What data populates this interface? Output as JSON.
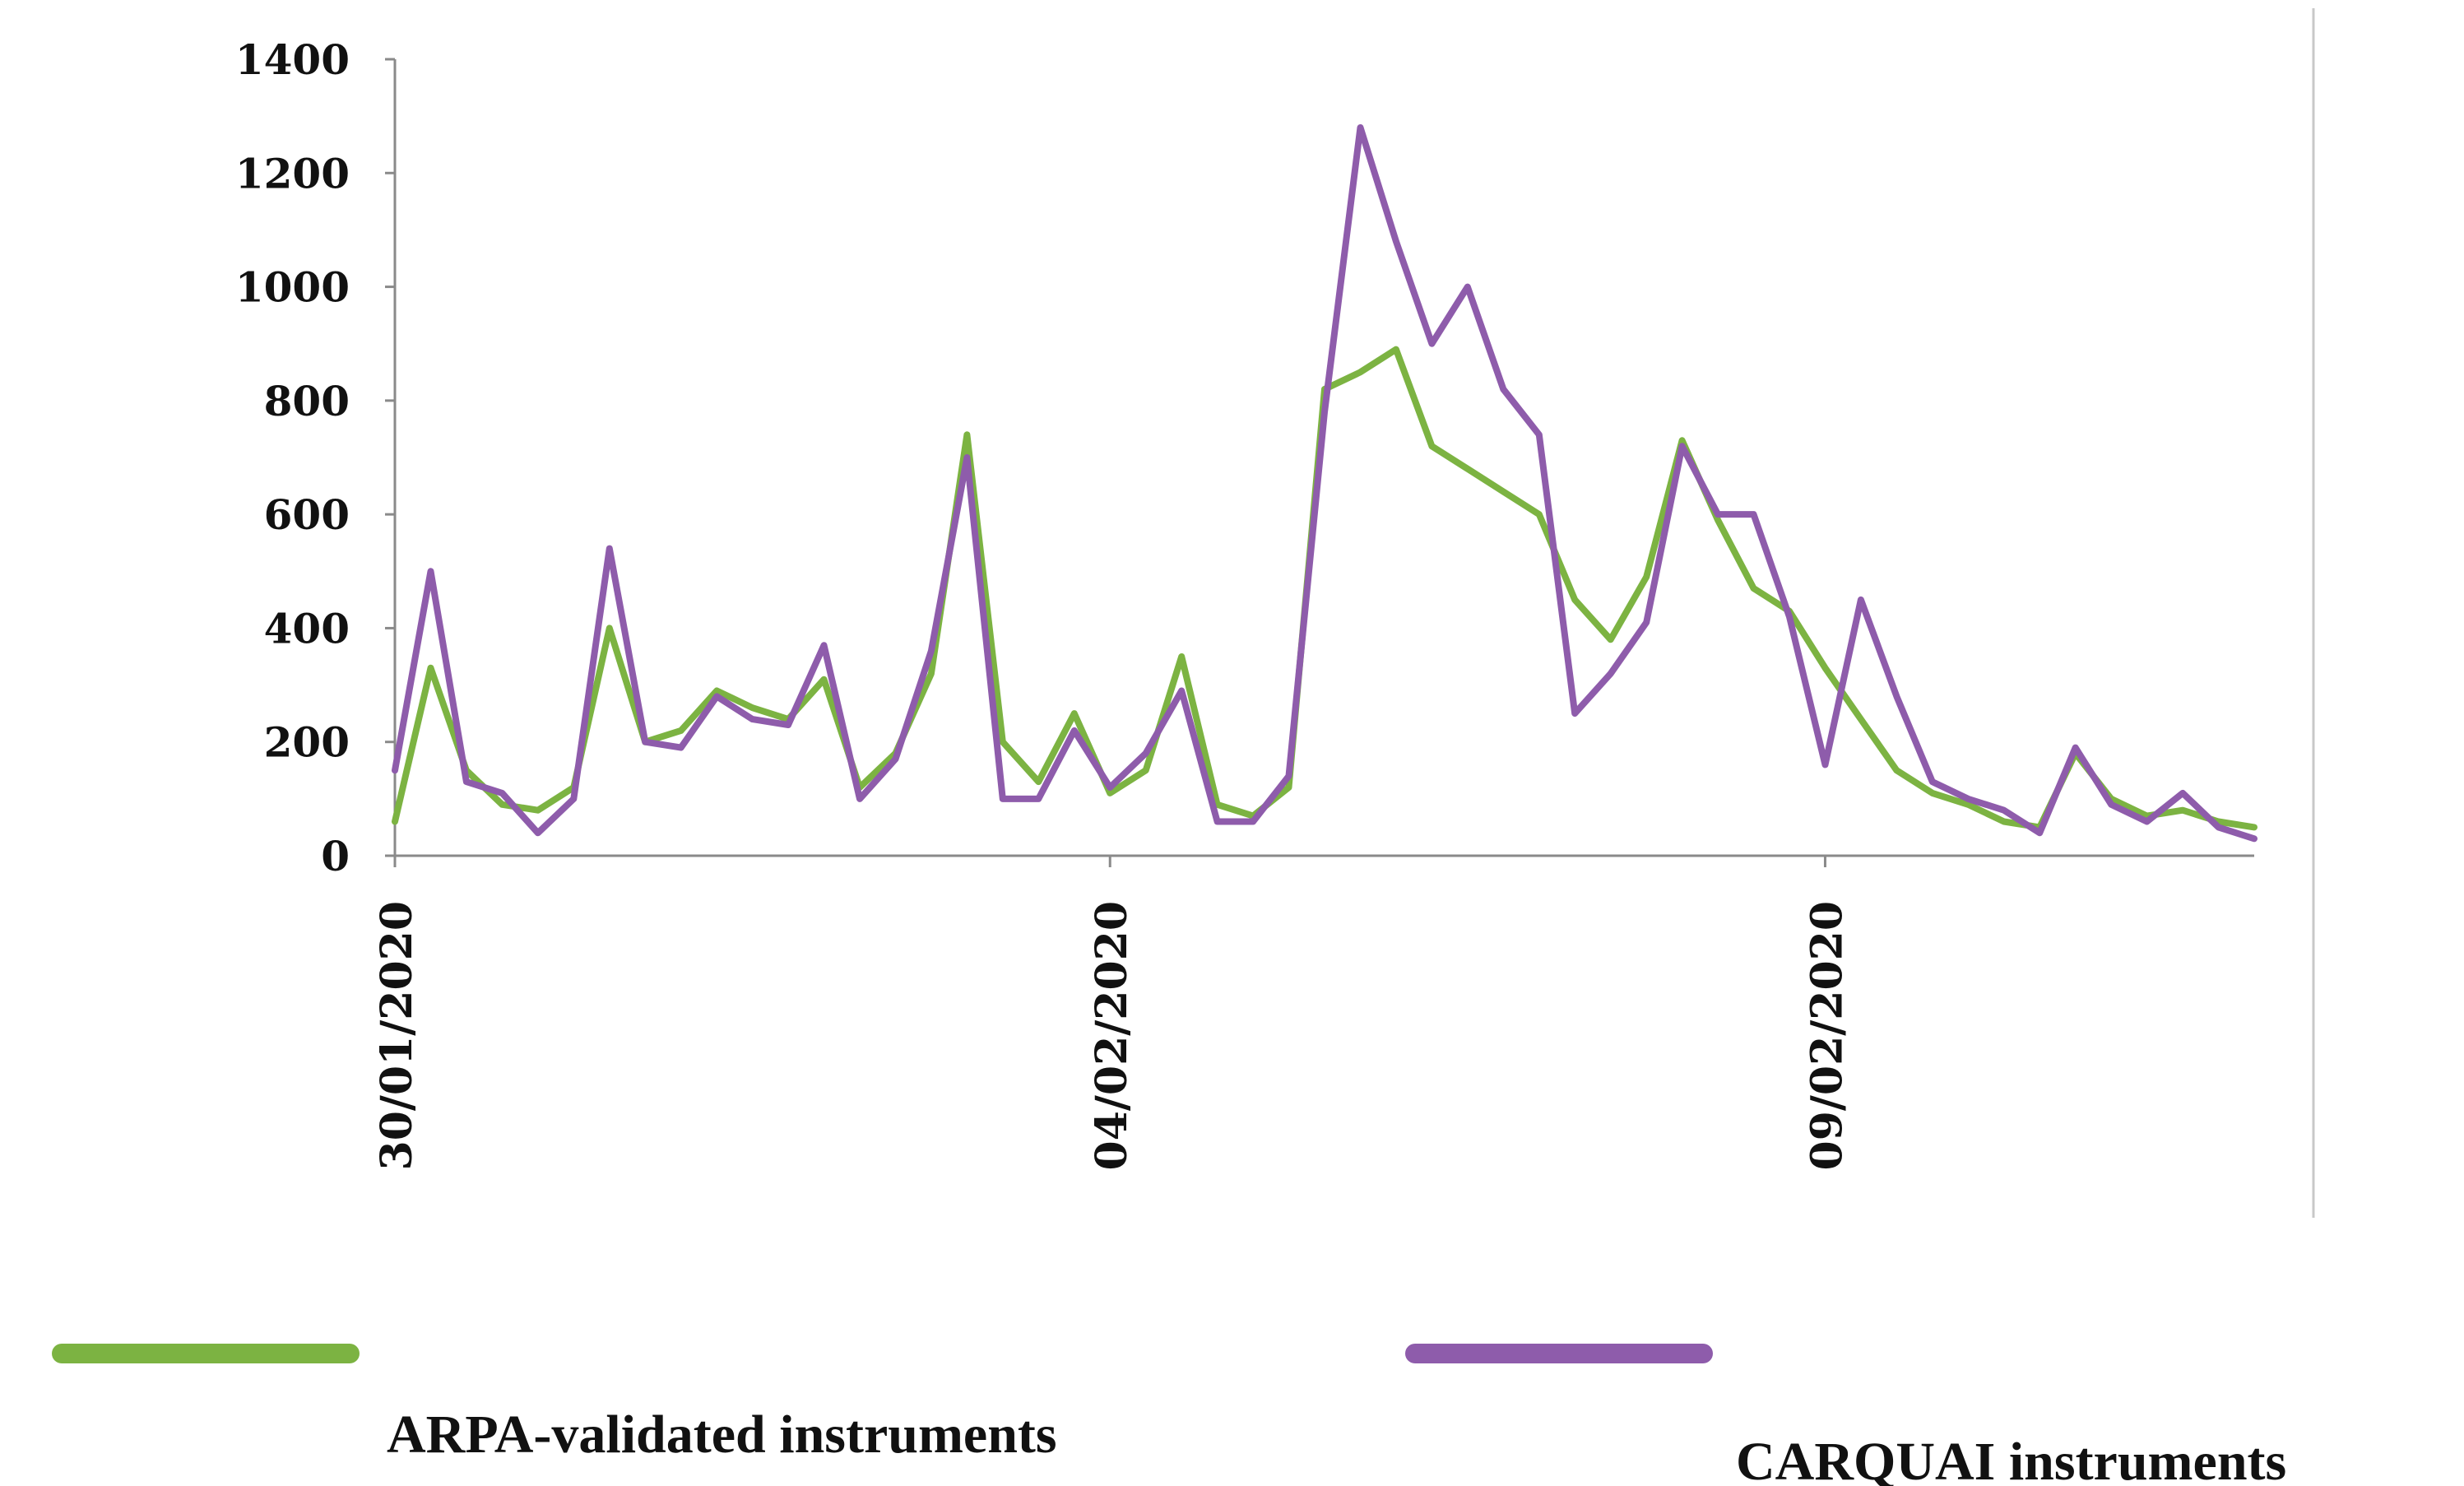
{
  "chart_data": {
    "type": "line",
    "title": "",
    "xlabel": "",
    "ylabel": "",
    "ylim": [
      0,
      1400
    ],
    "yticks": [
      0,
      200,
      400,
      600,
      800,
      1000,
      1200,
      1400
    ],
    "xlim": [
      "30/01/2020 00:00",
      "12/02/2020 00:00"
    ],
    "xticks": [
      "30/01/2020",
      "04/02/2020",
      "09/02/2020"
    ],
    "grid": false,
    "legend_position": "bottom",
    "x": [
      "30/01/2020 00:00",
      "30/01/2020 06:00",
      "30/01/2020 12:00",
      "30/01/2020 18:00",
      "31/01/2020 00:00",
      "31/01/2020 06:00",
      "31/01/2020 12:00",
      "31/01/2020 18:00",
      "01/02/2020 00:00",
      "01/02/2020 06:00",
      "01/02/2020 12:00",
      "01/02/2020 18:00",
      "02/02/2020 00:00",
      "02/02/2020 06:00",
      "02/02/2020 12:00",
      "02/02/2020 18:00",
      "03/02/2020 00:00",
      "03/02/2020 06:00",
      "03/02/2020 12:00",
      "03/02/2020 18:00",
      "04/02/2020 00:00",
      "04/02/2020 06:00",
      "04/02/2020 12:00",
      "04/02/2020 18:00",
      "05/02/2020 00:00",
      "05/02/2020 06:00",
      "05/02/2020 12:00",
      "05/02/2020 18:00",
      "06/02/2020 00:00",
      "06/02/2020 06:00",
      "06/02/2020 12:00",
      "06/02/2020 18:00",
      "07/02/2020 00:00",
      "07/02/2020 06:00",
      "07/02/2020 12:00",
      "07/02/2020 18:00",
      "08/02/2020 00:00",
      "08/02/2020 06:00",
      "08/02/2020 12:00",
      "08/02/2020 18:00",
      "09/02/2020 00:00",
      "09/02/2020 06:00",
      "09/02/2020 12:00",
      "09/02/2020 18:00",
      "10/02/2020 00:00",
      "10/02/2020 06:00",
      "10/02/2020 12:00",
      "10/02/2020 18:00",
      "11/02/2020 00:00",
      "11/02/2020 06:00",
      "11/02/2020 12:00",
      "11/02/2020 18:00",
      "12/02/2020 00:00"
    ],
    "series": [
      {
        "name": "ARPA-validated instruments",
        "color": "#7cb342",
        "values": [
          60,
          330,
          150,
          90,
          80,
          120,
          400,
          200,
          220,
          290,
          260,
          240,
          310,
          120,
          180,
          320,
          740,
          200,
          130,
          250,
          110,
          150,
          350,
          90,
          70,
          120,
          820,
          850,
          890,
          720,
          680,
          640,
          600,
          450,
          380,
          490,
          730,
          590,
          470,
          430,
          330,
          240,
          150,
          110,
          90,
          60,
          50,
          180,
          100,
          70,
          80,
          60,
          50
        ]
      },
      {
        "name": "CARQUAI instruments",
        "color": "#8e5cab",
        "values": [
          150,
          500,
          130,
          110,
          40,
          100,
          540,
          200,
          190,
          280,
          240,
          230,
          370,
          100,
          170,
          360,
          700,
          100,
          100,
          220,
          120,
          180,
          290,
          60,
          60,
          140,
          780,
          1280,
          1080,
          900,
          1000,
          820,
          740,
          250,
          320,
          410,
          720,
          600,
          600,
          420,
          160,
          450,
          280,
          130,
          100,
          80,
          40,
          190,
          90,
          60,
          110,
          50,
          30
        ]
      }
    ]
  }
}
